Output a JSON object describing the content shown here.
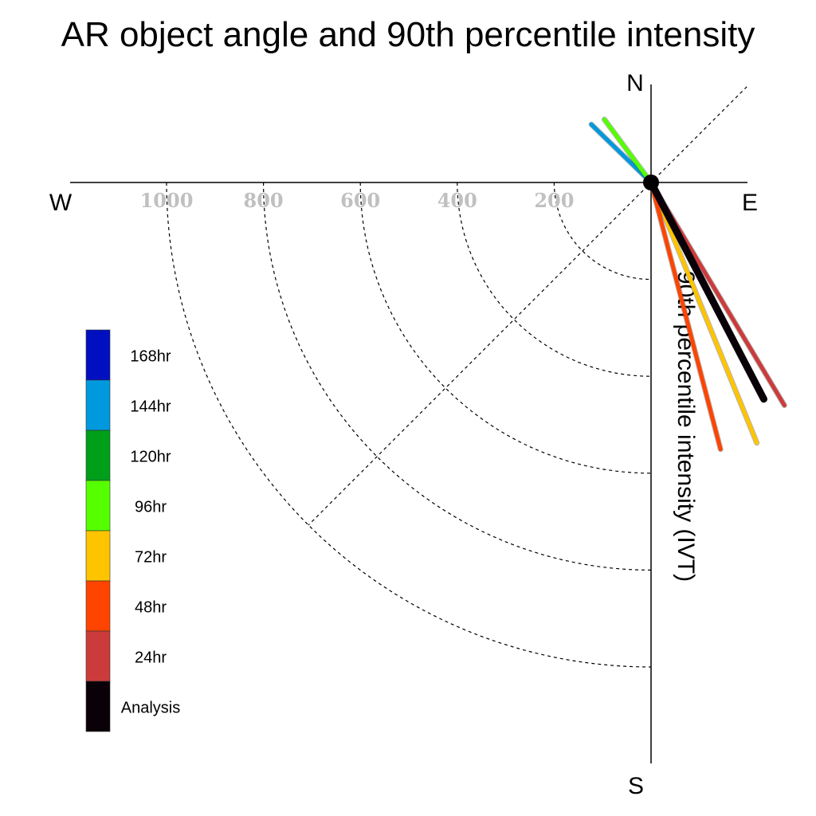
{
  "chart_data": {
    "type": "polar-vector",
    "title": "AR object angle and 90th percentile intensity",
    "ylabel": "90th percentile intensity (IVT)",
    "compass": {
      "north": "N",
      "south": "S",
      "east": "E",
      "west": "W"
    },
    "radial_ticks": [
      "1000",
      "800",
      "600",
      "400",
      "200"
    ],
    "radial_tick_values": [
      1000,
      800,
      600,
      400,
      200
    ],
    "radial_rings": [
      200,
      400,
      600,
      800,
      1000
    ],
    "r_max": 1000,
    "series": [
      {
        "name": "168hr",
        "color": "#0010c0",
        "angle_deg": null,
        "magnitude": null
      },
      {
        "name": "144hr",
        "color": "#0099dd",
        "angle_deg": -45.8,
        "magnitude": 172
      },
      {
        "name": "120hr",
        "color": "#009f1a",
        "angle_deg": null,
        "magnitude": null
      },
      {
        "name": "96hr",
        "color": "#55ff00",
        "angle_deg": -36.5,
        "magnitude": 162
      },
      {
        "name": "72hr",
        "color": "#ffc400",
        "angle_deg": 157.9,
        "magnitude": 580
      },
      {
        "name": "48hr",
        "color": "#ff4400",
        "angle_deg": 165.4,
        "magnitude": 569
      },
      {
        "name": "24hr",
        "color": "#cc3b3b",
        "angle_deg": 149.1,
        "magnitude": 536
      },
      {
        "name": "Analysis",
        "color": "#0a0008",
        "angle_deg": 152.5,
        "magnitude": 504
      }
    ],
    "legend": [
      "168hr",
      "144hr",
      "120hr",
      "96hr",
      "72hr",
      "48hr",
      "24hr",
      "Analysis"
    ]
  }
}
